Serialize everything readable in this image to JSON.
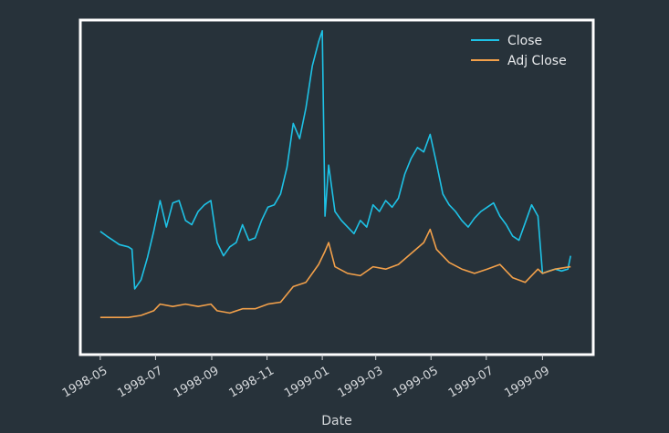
{
  "chart_data": {
    "type": "line",
    "xlabel": "Date",
    "x_tick_labels": [
      "1998-05",
      "1998-07",
      "1998-09",
      "1998-11",
      "1999-01",
      "1999-03",
      "1999-05",
      "1999-07",
      "1999-09"
    ],
    "x_tick_dates": [
      "1998-05-01",
      "1998-07-01",
      "1998-09-01",
      "1998-11-01",
      "1999-01-01",
      "1999-03-01",
      "1999-05-01",
      "1999-07-01",
      "1999-09-01"
    ],
    "xlim": [
      "1998-04-11",
      "1999-10-25"
    ],
    "ylim": [
      0,
      100
    ],
    "y_ticks_shown": false,
    "grid": false,
    "legend_position": "top-right",
    "frame_color": "#ffffff",
    "series": [
      {
        "name": "Close",
        "color": "#1ec2e6",
        "points": [
          [
            "1998-05-01",
            36.7
          ],
          [
            "1998-05-08",
            35.3
          ],
          [
            "1998-05-15",
            34.0
          ],
          [
            "1998-05-22",
            32.7
          ],
          [
            "1998-06-01",
            32.0
          ],
          [
            "1998-06-05",
            31.3
          ],
          [
            "1998-06-08",
            19.3
          ],
          [
            "1998-06-15",
            22.0
          ],
          [
            "1998-06-22",
            28.7
          ],
          [
            "1998-06-29",
            36.7
          ],
          [
            "1998-07-06",
            46.0
          ],
          [
            "1998-07-13",
            38.0
          ],
          [
            "1998-07-20",
            45.3
          ],
          [
            "1998-07-27",
            46.0
          ],
          [
            "1998-08-03",
            40.0
          ],
          [
            "1998-08-10",
            38.7
          ],
          [
            "1998-08-17",
            42.7
          ],
          [
            "1998-08-24",
            44.7
          ],
          [
            "1998-08-31",
            46.0
          ],
          [
            "1998-09-07",
            33.3
          ],
          [
            "1998-09-14",
            29.3
          ],
          [
            "1998-09-21",
            32.0
          ],
          [
            "1998-09-28",
            33.3
          ],
          [
            "1998-10-05",
            38.7
          ],
          [
            "1998-10-12",
            34.0
          ],
          [
            "1998-10-19",
            34.7
          ],
          [
            "1998-10-26",
            40.0
          ],
          [
            "1998-11-02",
            44.0
          ],
          [
            "1998-11-09",
            44.7
          ],
          [
            "1998-11-16",
            48.0
          ],
          [
            "1998-11-23",
            56.0
          ],
          [
            "1998-11-30",
            69.3
          ],
          [
            "1998-12-07",
            64.7
          ],
          [
            "1998-12-14",
            74.0
          ],
          [
            "1998-12-21",
            86.7
          ],
          [
            "1998-12-28",
            94.0
          ],
          [
            "1999-01-01",
            97.3
          ],
          [
            "1999-01-04",
            41.3
          ],
          [
            "1999-01-08",
            56.7
          ],
          [
            "1999-01-15",
            42.7
          ],
          [
            "1999-01-22",
            40.0
          ],
          [
            "1999-01-29",
            38.0
          ],
          [
            "1999-02-05",
            36.0
          ],
          [
            "1999-02-12",
            40.0
          ],
          [
            "1999-02-19",
            38.0
          ],
          [
            "1999-02-26",
            44.7
          ],
          [
            "1999-03-05",
            42.7
          ],
          [
            "1999-03-12",
            46.0
          ],
          [
            "1999-03-19",
            44.0
          ],
          [
            "1999-03-26",
            46.7
          ],
          [
            "1999-04-02",
            54.0
          ],
          [
            "1999-04-09",
            58.7
          ],
          [
            "1999-04-16",
            62.0
          ],
          [
            "1999-04-23",
            60.7
          ],
          [
            "1999-04-30",
            66.0
          ],
          [
            "1999-05-07",
            57.3
          ],
          [
            "1999-05-14",
            48.0
          ],
          [
            "1999-05-21",
            44.7
          ],
          [
            "1999-05-28",
            42.7
          ],
          [
            "1999-06-04",
            40.0
          ],
          [
            "1999-06-11",
            38.0
          ],
          [
            "1999-06-18",
            40.7
          ],
          [
            "1999-06-25",
            42.7
          ],
          [
            "1999-07-02",
            44.0
          ],
          [
            "1999-07-09",
            45.3
          ],
          [
            "1999-07-16",
            41.3
          ],
          [
            "1999-07-23",
            38.7
          ],
          [
            "1999-07-30",
            35.3
          ],
          [
            "1999-08-06",
            34.0
          ],
          [
            "1999-08-13",
            39.3
          ],
          [
            "1999-08-20",
            44.7
          ],
          [
            "1999-08-27",
            41.3
          ],
          [
            "1999-09-01",
            24.0
          ],
          [
            "1999-09-08",
            24.7
          ],
          [
            "1999-09-15",
            25.3
          ],
          [
            "1999-09-22",
            24.7
          ],
          [
            "1999-09-29",
            25.3
          ],
          [
            "1999-10-02",
            29.3
          ]
        ]
      },
      {
        "name": "Adj Close",
        "color": "#f2a04a",
        "points": [
          [
            "1998-05-01",
            10.7
          ],
          [
            "1998-05-15",
            10.7
          ],
          [
            "1998-06-01",
            10.7
          ],
          [
            "1998-06-15",
            11.3
          ],
          [
            "1998-06-29",
            12.7
          ],
          [
            "1998-07-06",
            14.7
          ],
          [
            "1998-07-20",
            14.0
          ],
          [
            "1998-08-03",
            14.7
          ],
          [
            "1998-08-17",
            14.0
          ],
          [
            "1998-08-31",
            14.7
          ],
          [
            "1998-09-07",
            12.7
          ],
          [
            "1998-09-21",
            12.0
          ],
          [
            "1998-10-05",
            13.3
          ],
          [
            "1998-10-19",
            13.3
          ],
          [
            "1998-11-02",
            14.7
          ],
          [
            "1998-11-16",
            15.3
          ],
          [
            "1998-11-30",
            20.0
          ],
          [
            "1998-12-14",
            21.3
          ],
          [
            "1998-12-28",
            26.7
          ],
          [
            "1999-01-04",
            30.7
          ],
          [
            "1999-01-08",
            33.3
          ],
          [
            "1999-01-15",
            26.0
          ],
          [
            "1999-01-29",
            24.0
          ],
          [
            "1999-02-12",
            23.3
          ],
          [
            "1999-02-26",
            26.0
          ],
          [
            "1999-03-12",
            25.3
          ],
          [
            "1999-03-26",
            26.7
          ],
          [
            "1999-04-09",
            30.0
          ],
          [
            "1999-04-23",
            33.3
          ],
          [
            "1999-04-30",
            37.3
          ],
          [
            "1999-05-07",
            31.3
          ],
          [
            "1999-05-21",
            27.3
          ],
          [
            "1999-06-04",
            25.3
          ],
          [
            "1999-06-18",
            24.0
          ],
          [
            "1999-07-02",
            25.3
          ],
          [
            "1999-07-16",
            26.7
          ],
          [
            "1999-07-30",
            22.7
          ],
          [
            "1999-08-13",
            21.3
          ],
          [
            "1999-08-27",
            25.3
          ],
          [
            "1999-09-01",
            24.0
          ],
          [
            "1999-09-15",
            25.3
          ],
          [
            "1999-10-02",
            26.0
          ]
        ]
      }
    ]
  }
}
